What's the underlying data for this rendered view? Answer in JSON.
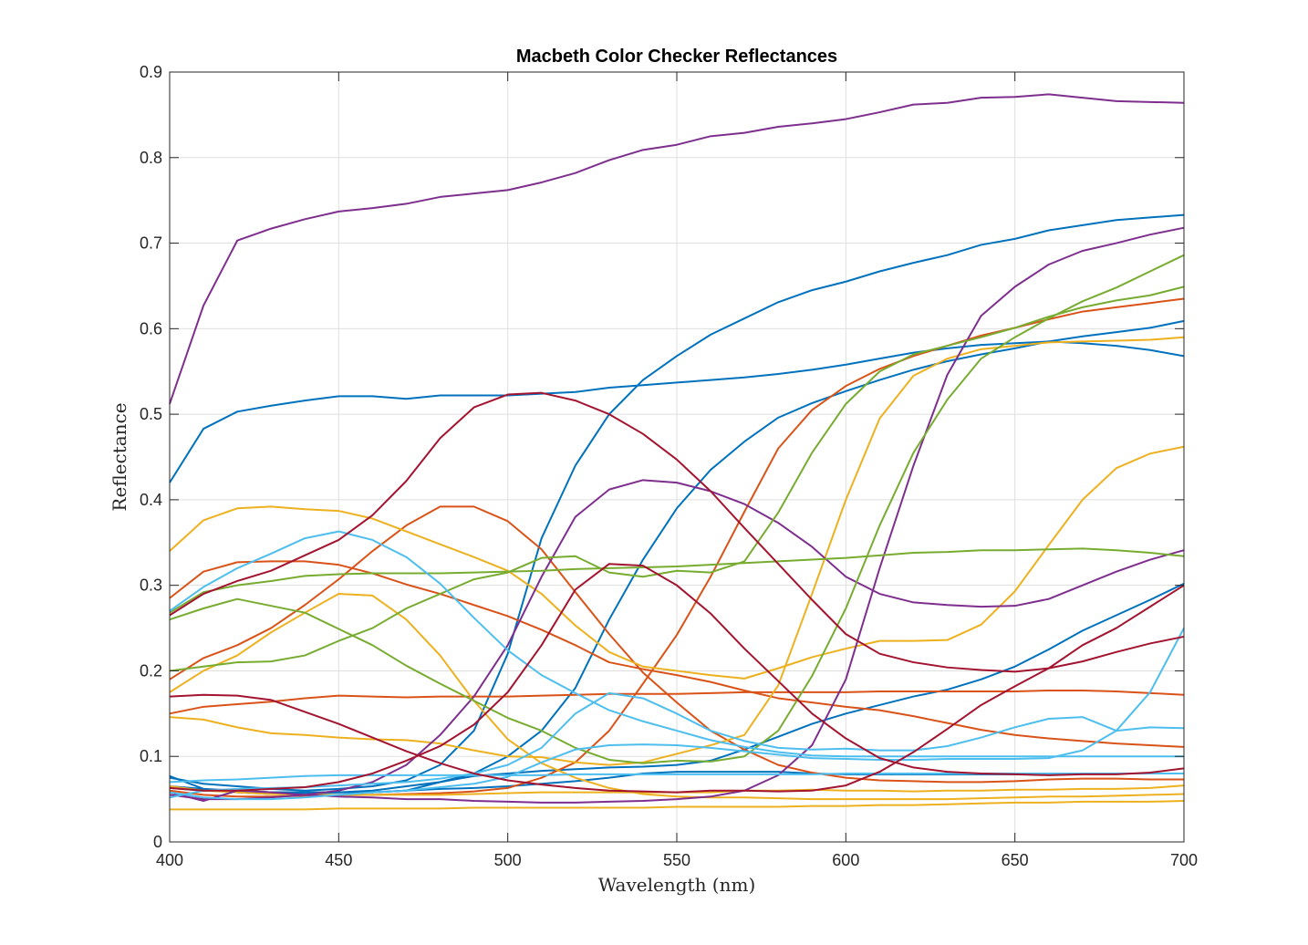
{
  "chart_data": {
    "type": "line",
    "title": "Macbeth Color Checker Reflectances",
    "xlabel": "Wavelength (nm)",
    "ylabel": "Reflectance",
    "xlim": [
      400,
      700
    ],
    "ylim": [
      0,
      0.9
    ],
    "xticks": [
      400,
      450,
      500,
      550,
      600,
      650,
      700
    ],
    "yticks": [
      0,
      0.1,
      0.2,
      0.3,
      0.4,
      0.5,
      0.6,
      0.7,
      0.8,
      0.9
    ],
    "grid": true,
    "x": [
      400,
      410,
      420,
      430,
      440,
      450,
      460,
      470,
      480,
      490,
      500,
      510,
      520,
      530,
      540,
      550,
      560,
      570,
      580,
      590,
      600,
      610,
      620,
      630,
      640,
      650,
      660,
      670,
      680,
      690,
      700
    ],
    "series": [
      {
        "color": "#7E2F8E",
        "values": [
          0.512,
          0.627,
          0.703,
          0.717,
          0.728,
          0.737,
          0.741,
          0.746,
          0.754,
          0.758,
          0.762,
          0.771,
          0.782,
          0.797,
          0.809,
          0.815,
          0.825,
          0.829,
          0.836,
          0.84,
          0.845,
          0.853,
          0.862,
          0.864,
          0.87,
          0.871,
          0.874,
          0.87,
          0.866,
          0.865,
          0.864
        ]
      },
      {
        "color": "#0072BD",
        "values": [
          0.42,
          0.483,
          0.503,
          0.51,
          0.516,
          0.521,
          0.521,
          0.518,
          0.522,
          0.522,
          0.522,
          0.524,
          0.526,
          0.531,
          0.534,
          0.537,
          0.54,
          0.543,
          0.547,
          0.552,
          0.558,
          0.565,
          0.572,
          0.577,
          0.581,
          0.583,
          0.585,
          0.583,
          0.58,
          0.575,
          0.568
        ]
      },
      {
        "color": "#0072BD",
        "values": [
          0.075,
          0.068,
          0.065,
          0.062,
          0.06,
          0.062,
          0.065,
          0.072,
          0.09,
          0.13,
          0.22,
          0.355,
          0.44,
          0.5,
          0.54,
          0.568,
          0.593,
          0.612,
          0.631,
          0.645,
          0.655,
          0.667,
          0.677,
          0.686,
          0.698,
          0.705,
          0.715,
          0.721,
          0.727,
          0.73,
          0.733
        ]
      },
      {
        "color": "#0072BD",
        "values": [
          0.063,
          0.06,
          0.06,
          0.058,
          0.058,
          0.058,
          0.058,
          0.06,
          0.07,
          0.08,
          0.1,
          0.13,
          0.18,
          0.26,
          0.33,
          0.39,
          0.435,
          0.468,
          0.496,
          0.513,
          0.527,
          0.54,
          0.552,
          0.562,
          0.57,
          0.577,
          0.585,
          0.591,
          0.596,
          0.601,
          0.609
        ]
      },
      {
        "color": "#0072BD",
        "values": [
          0.077,
          0.062,
          0.058,
          0.056,
          0.056,
          0.058,
          0.06,
          0.065,
          0.07,
          0.077,
          0.08,
          0.083,
          0.085,
          0.087,
          0.088,
          0.09,
          0.095,
          0.108,
          0.123,
          0.138,
          0.15,
          0.16,
          0.17,
          0.178,
          0.19,
          0.205,
          0.225,
          0.247,
          0.265,
          0.283,
          0.302
        ]
      },
      {
        "color": "#0072BD",
        "values": [
          0.065,
          0.062,
          0.06,
          0.058,
          0.058,
          0.058,
          0.058,
          0.06,
          0.062,
          0.063,
          0.065,
          0.068,
          0.071,
          0.075,
          0.08,
          0.082,
          0.082,
          0.082,
          0.082,
          0.08,
          0.079,
          0.079,
          0.079,
          0.079,
          0.079,
          0.079,
          0.08,
          0.08,
          0.08,
          0.08,
          0.08
        ]
      },
      {
        "color": "#D95319",
        "values": [
          0.285,
          0.316,
          0.327,
          0.328,
          0.328,
          0.324,
          0.314,
          0.301,
          0.29,
          0.277,
          0.264,
          0.248,
          0.23,
          0.21,
          0.202,
          0.195,
          0.187,
          0.177,
          0.168,
          0.163,
          0.158,
          0.154,
          0.147,
          0.139,
          0.131,
          0.125,
          0.121,
          0.118,
          0.115,
          0.113,
          0.111
        ]
      },
      {
        "color": "#D95319",
        "values": [
          0.19,
          0.215,
          0.23,
          0.25,
          0.277,
          0.307,
          0.34,
          0.37,
          0.392,
          0.392,
          0.375,
          0.342,
          0.292,
          0.243,
          0.198,
          0.163,
          0.13,
          0.108,
          0.09,
          0.081,
          0.075,
          0.072,
          0.071,
          0.07,
          0.07,
          0.071,
          0.073,
          0.074,
          0.074,
          0.073,
          0.073
        ]
      },
      {
        "color": "#D95319",
        "values": [
          0.15,
          0.158,
          0.161,
          0.164,
          0.168,
          0.171,
          0.17,
          0.169,
          0.17,
          0.17,
          0.17,
          0.171,
          0.172,
          0.173,
          0.173,
          0.173,
          0.174,
          0.175,
          0.175,
          0.175,
          0.175,
          0.176,
          0.176,
          0.176,
          0.176,
          0.176,
          0.177,
          0.177,
          0.176,
          0.174,
          0.172
        ]
      },
      {
        "color": "#D95319",
        "values": [
          0.06,
          0.055,
          0.053,
          0.053,
          0.054,
          0.055,
          0.055,
          0.056,
          0.057,
          0.059,
          0.063,
          0.075,
          0.093,
          0.13,
          0.185,
          0.242,
          0.31,
          0.386,
          0.46,
          0.505,
          0.533,
          0.553,
          0.568,
          0.58,
          0.592,
          0.601,
          0.611,
          0.62,
          0.625,
          0.63,
          0.635
        ]
      },
      {
        "color": "#EDB120",
        "values": [
          0.34,
          0.376,
          0.39,
          0.392,
          0.389,
          0.387,
          0.378,
          0.363,
          0.348,
          0.333,
          0.317,
          0.29,
          0.253,
          0.222,
          0.205,
          0.2,
          0.195,
          0.191,
          0.203,
          0.216,
          0.226,
          0.235,
          0.235,
          0.236,
          0.254,
          0.293,
          0.347,
          0.4,
          0.437,
          0.454,
          0.462
        ]
      },
      {
        "color": "#EDB120",
        "values": [
          0.175,
          0.2,
          0.218,
          0.245,
          0.268,
          0.29,
          0.288,
          0.26,
          0.218,
          0.165,
          0.12,
          0.092,
          0.075,
          0.063,
          0.056,
          0.053,
          0.052,
          0.052,
          0.051,
          0.05,
          0.05,
          0.05,
          0.05,
          0.05,
          0.051,
          0.052,
          0.053,
          0.053,
          0.054,
          0.055,
          0.056
        ]
      },
      {
        "color": "#EDB120",
        "values": [
          0.146,
          0.143,
          0.134,
          0.127,
          0.125,
          0.122,
          0.12,
          0.119,
          0.115,
          0.107,
          0.1,
          0.099,
          0.093,
          0.09,
          0.093,
          0.103,
          0.113,
          0.125,
          0.183,
          0.29,
          0.4,
          0.495,
          0.545,
          0.565,
          0.576,
          0.58,
          0.584,
          0.585,
          0.586,
          0.587,
          0.59
        ]
      },
      {
        "color": "#EDB120",
        "values": [
          0.038,
          0.038,
          0.038,
          0.038,
          0.038,
          0.039,
          0.039,
          0.039,
          0.039,
          0.04,
          0.04,
          0.04,
          0.04,
          0.04,
          0.04,
          0.041,
          0.041,
          0.041,
          0.041,
          0.042,
          0.042,
          0.043,
          0.043,
          0.044,
          0.045,
          0.046,
          0.046,
          0.047,
          0.047,
          0.047,
          0.048
        ]
      },
      {
        "color": "#EDB120",
        "values": [
          0.065,
          0.06,
          0.058,
          0.056,
          0.055,
          0.055,
          0.055,
          0.055,
          0.055,
          0.056,
          0.057,
          0.058,
          0.058,
          0.058,
          0.058,
          0.058,
          0.058,
          0.06,
          0.06,
          0.061,
          0.06,
          0.06,
          0.059,
          0.06,
          0.06,
          0.061,
          0.061,
          0.062,
          0.062,
          0.063,
          0.066
        ]
      },
      {
        "color": "#7E2F8E",
        "values": [
          0.055,
          0.05,
          0.05,
          0.052,
          0.055,
          0.06,
          0.07,
          0.09,
          0.125,
          0.17,
          0.23,
          0.31,
          0.38,
          0.412,
          0.423,
          0.42,
          0.41,
          0.395,
          0.373,
          0.345,
          0.31,
          0.29,
          0.28,
          0.277,
          0.275,
          0.276,
          0.284,
          0.3,
          0.316,
          0.33,
          0.341
        ]
      },
      {
        "color": "#7E2F8E",
        "values": [
          0.058,
          0.048,
          0.06,
          0.058,
          0.055,
          0.053,
          0.052,
          0.05,
          0.05,
          0.048,
          0.047,
          0.046,
          0.046,
          0.047,
          0.048,
          0.05,
          0.053,
          0.06,
          0.078,
          0.113,
          0.19,
          0.32,
          0.44,
          0.546,
          0.615,
          0.649,
          0.675,
          0.691,
          0.7,
          0.71,
          0.718
        ]
      },
      {
        "color": "#77AC30",
        "values": [
          0.26,
          0.273,
          0.284,
          0.276,
          0.268,
          0.249,
          0.23,
          0.206,
          0.185,
          0.165,
          0.145,
          0.13,
          0.11,
          0.096,
          0.092,
          0.095,
          0.094,
          0.1,
          0.13,
          0.194,
          0.273,
          0.37,
          0.455,
          0.517,
          0.565,
          0.59,
          0.612,
          0.632,
          0.648,
          0.667,
          0.686
        ]
      },
      {
        "color": "#77AC30",
        "values": [
          0.2,
          0.205,
          0.21,
          0.211,
          0.218,
          0.235,
          0.25,
          0.273,
          0.29,
          0.307,
          0.315,
          0.332,
          0.334,
          0.315,
          0.31,
          0.317,
          0.315,
          0.328,
          0.385,
          0.455,
          0.512,
          0.55,
          0.57,
          0.58,
          0.59,
          0.601,
          0.614,
          0.625,
          0.633,
          0.639,
          0.649
        ]
      },
      {
        "color": "#77AC30",
        "values": [
          0.268,
          0.292,
          0.3,
          0.305,
          0.311,
          0.313,
          0.314,
          0.314,
          0.314,
          0.315,
          0.316,
          0.317,
          0.319,
          0.32,
          0.321,
          0.322,
          0.324,
          0.326,
          0.328,
          0.33,
          0.332,
          0.335,
          0.338,
          0.339,
          0.341,
          0.341,
          0.342,
          0.343,
          0.341,
          0.338,
          0.334
        ]
      },
      {
        "color": "#4DBEEE",
        "values": [
          0.27,
          0.298,
          0.32,
          0.337,
          0.355,
          0.363,
          0.353,
          0.333,
          0.302,
          0.262,
          0.224,
          0.195,
          0.174,
          0.154,
          0.141,
          0.13,
          0.119,
          0.111,
          0.105,
          0.101,
          0.1,
          0.1,
          0.1,
          0.1,
          0.1,
          0.1,
          0.1,
          0.1,
          0.1,
          0.1,
          0.1
        ]
      },
      {
        "color": "#4DBEEE",
        "values": [
          0.052,
          0.06,
          0.062,
          0.063,
          0.064,
          0.066,
          0.068,
          0.07,
          0.074,
          0.08,
          0.09,
          0.11,
          0.15,
          0.174,
          0.168,
          0.15,
          0.13,
          0.118,
          0.11,
          0.108,
          0.109,
          0.107,
          0.107,
          0.112,
          0.122,
          0.134,
          0.144,
          0.146,
          0.13,
          0.134,
          0.133
        ]
      },
      {
        "color": "#4DBEEE",
        "values": [
          0.07,
          0.072,
          0.073,
          0.075,
          0.077,
          0.078,
          0.078,
          0.078,
          0.078,
          0.078,
          0.078,
          0.078,
          0.079,
          0.079,
          0.079,
          0.079,
          0.079,
          0.079,
          0.079,
          0.079,
          0.08,
          0.08,
          0.08,
          0.08,
          0.08,
          0.08,
          0.08,
          0.08,
          0.08,
          0.08,
          0.08
        ]
      },
      {
        "color": "#4DBEEE",
        "values": [
          0.058,
          0.052,
          0.05,
          0.05,
          0.052,
          0.055,
          0.058,
          0.06,
          0.064,
          0.068,
          0.076,
          0.093,
          0.108,
          0.113,
          0.114,
          0.113,
          0.11,
          0.106,
          0.102,
          0.098,
          0.097,
          0.096,
          0.096,
          0.097,
          0.097,
          0.097,
          0.098,
          0.107,
          0.13,
          0.175,
          0.25
        ]
      },
      {
        "color": "#A2142F",
        "values": [
          0.265,
          0.29,
          0.305,
          0.317,
          0.335,
          0.353,
          0.382,
          0.422,
          0.472,
          0.508,
          0.523,
          0.525,
          0.516,
          0.5,
          0.477,
          0.447,
          0.41,
          0.367,
          0.325,
          0.283,
          0.243,
          0.22,
          0.21,
          0.204,
          0.201,
          0.199,
          0.203,
          0.211,
          0.222,
          0.232,
          0.24
        ]
      },
      {
        "color": "#A2142F",
        "values": [
          0.17,
          0.172,
          0.171,
          0.166,
          0.152,
          0.138,
          0.122,
          0.106,
          0.092,
          0.08,
          0.072,
          0.067,
          0.063,
          0.06,
          0.059,
          0.058,
          0.06,
          0.06,
          0.059,
          0.06,
          0.066,
          0.082,
          0.105,
          0.132,
          0.16,
          0.182,
          0.203,
          0.23,
          0.25,
          0.275,
          0.3
        ]
      },
      {
        "color": "#A2142F",
        "values": [
          0.063,
          0.06,
          0.06,
          0.062,
          0.064,
          0.07,
          0.08,
          0.095,
          0.112,
          0.137,
          0.175,
          0.23,
          0.295,
          0.325,
          0.323,
          0.3,
          0.267,
          0.226,
          0.188,
          0.15,
          0.121,
          0.098,
          0.087,
          0.082,
          0.08,
          0.079,
          0.078,
          0.079,
          0.079,
          0.081,
          0.086
        ]
      }
    ]
  }
}
